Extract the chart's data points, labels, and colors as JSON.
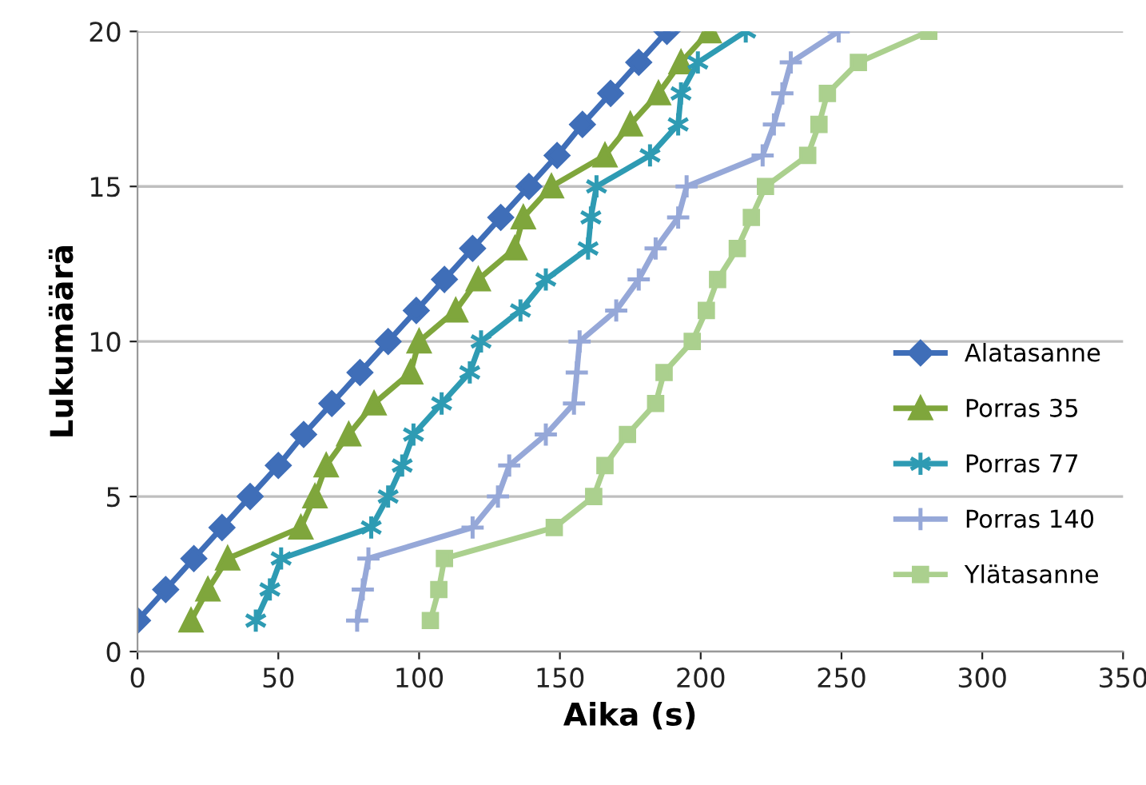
{
  "chart_data": {
    "type": "line",
    "xlabel": "Aika (s)",
    "ylabel": "Lukumäärä",
    "xlim": [
      0,
      350
    ],
    "xticks": [
      0,
      50,
      100,
      150,
      200,
      250,
      300,
      350
    ],
    "ylim": [
      0,
      20
    ],
    "yticks": [
      0,
      5,
      10,
      15,
      20
    ],
    "grid": "y",
    "legend": "right",
    "series": [
      {
        "name": "Alatasanne",
        "color": "#3f6eb8",
        "marker": "diamond",
        "x": [
          0,
          10,
          20,
          30,
          40,
          50,
          59,
          69,
          79,
          89,
          99,
          109,
          119,
          129,
          139,
          149,
          158,
          168,
          178,
          188
        ],
        "values": [
          1,
          2,
          3,
          4,
          5,
          6,
          7,
          8,
          9,
          10,
          11,
          12,
          13,
          14,
          15,
          16,
          17,
          18,
          19,
          20
        ]
      },
      {
        "name": "Porras 35",
        "color": "#7fa63c",
        "marker": "triangle",
        "x": [
          19,
          25,
          32,
          58,
          63,
          67,
          75,
          84,
          97,
          100,
          113,
          121,
          134,
          137,
          147,
          166,
          175,
          185,
          193,
          203
        ],
        "values": [
          1,
          2,
          3,
          4,
          5,
          6,
          7,
          8,
          9,
          10,
          11,
          12,
          13,
          14,
          15,
          16,
          17,
          18,
          19,
          20
        ]
      },
      {
        "name": "Porras 77",
        "color": "#2e9bb3",
        "marker": "cross",
        "x": [
          42,
          47,
          51,
          83,
          89,
          94,
          98,
          108,
          118,
          122,
          136,
          145,
          160,
          161,
          163,
          182,
          192,
          193,
          199,
          216
        ],
        "values": [
          1,
          2,
          3,
          4,
          5,
          6,
          7,
          8,
          9,
          10,
          11,
          12,
          13,
          14,
          15,
          16,
          17,
          18,
          19,
          20
        ]
      },
      {
        "name": "Porras 140",
        "color": "#96a8d8",
        "marker": "cross",
        "x": [
          78,
          80,
          82,
          119,
          128,
          132,
          145,
          155,
          156,
          157,
          170,
          178,
          184,
          192,
          195,
          222,
          226,
          229,
          232,
          249
        ],
        "values": [
          1,
          2,
          3,
          4,
          5,
          6,
          7,
          8,
          9,
          10,
          11,
          12,
          13,
          14,
          15,
          16,
          17,
          18,
          19,
          20
        ]
      },
      {
        "name": "Ylätasanne",
        "color": "#abd08e",
        "marker": "square",
        "x": [
          104,
          107,
          109,
          148,
          162,
          166,
          174,
          184,
          187,
          197,
          202,
          206,
          213,
          218,
          223,
          238,
          242,
          245,
          256,
          281
        ],
        "values": [
          1,
          2,
          3,
          4,
          5,
          6,
          7,
          8,
          9,
          10,
          11,
          12,
          13,
          14,
          15,
          16,
          17,
          18,
          19,
          20
        ]
      }
    ]
  }
}
